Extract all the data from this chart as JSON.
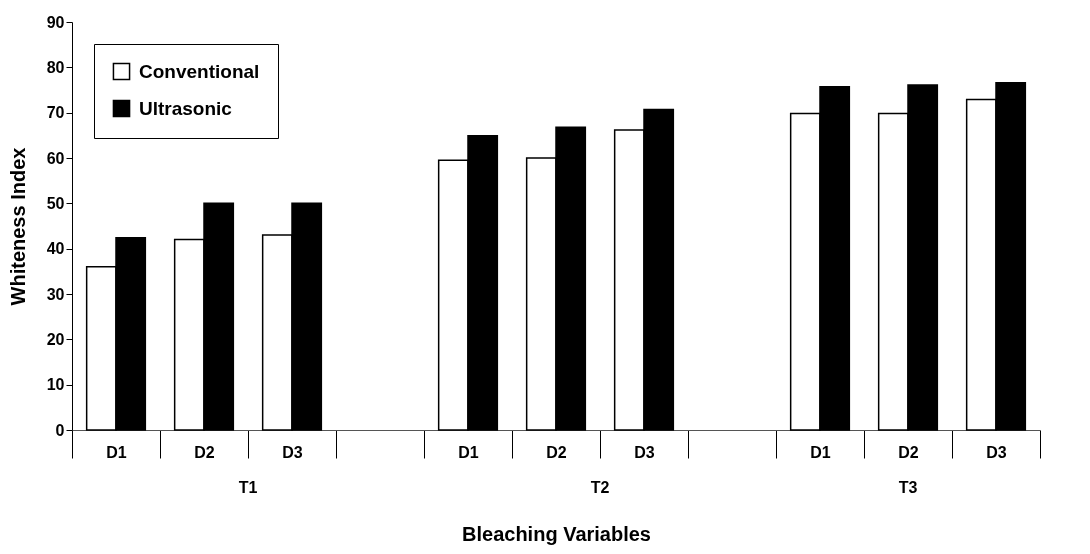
{
  "chart_data": {
    "type": "bar",
    "xlabel": "Bleaching Variables",
    "ylabel": "Whiteness Index",
    "categories": [
      "D1",
      "D2",
      "D3",
      null,
      "D1",
      "D2",
      "D3",
      null,
      "D1",
      "D2",
      "D3"
    ],
    "series": [
      {
        "name": "Conventional",
        "color": "#ffffff",
        "values": [
          36,
          42,
          43,
          null,
          59.5,
          60,
          66.2,
          null,
          69.8,
          69.8,
          72.9
        ]
      },
      {
        "name": "Ultrasonic",
        "color": "#000000",
        "values": [
          42.4,
          50,
          50,
          null,
          64.9,
          66.8,
          70.7,
          null,
          75.7,
          76.1,
          76.6
        ]
      }
    ],
    "annotations": [
      "T1",
      "T2",
      "T3"
    ],
    "ylim": [
      0,
      90
    ],
    "yticks": [
      0,
      10,
      20,
      30,
      40,
      50,
      60,
      70,
      80,
      90
    ],
    "legend": "top left",
    "grid": false
  }
}
